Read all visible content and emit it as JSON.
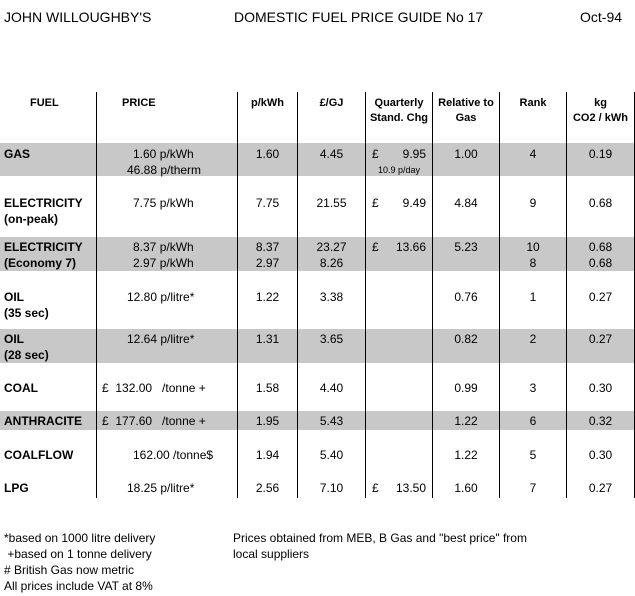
{
  "header": {
    "author": "JOHN WILLOUGHBY'S",
    "title": "DOMESTIC FUEL PRICE GUIDE No 17",
    "date": "Oct-94"
  },
  "columns": {
    "fuel": "FUEL",
    "price": "PRICE",
    "pkwh": "p/kWh",
    "gj": "£/GJ",
    "quarterly_1": "Quarterly",
    "quarterly_2": "Stand. Chg",
    "relative_1": "Relative to",
    "relative_2": "Gas",
    "rank": "Rank",
    "co2_1": "kg",
    "co2_2": "CO2 / kWh"
  },
  "rows": [
    {
      "fuel1": "GAS",
      "fuel2": "",
      "price1": "1.60  p/kWh",
      "price2": "46.88  p/therm",
      "pkwh1": "1.60",
      "pkwh2": "",
      "gj1": "4.45",
      "gj2": "",
      "q_sym": "£",
      "q_val": "9.95",
      "q_note": "10.9 p/day",
      "rel": "1.00",
      "rank1": "4",
      "rank2": "",
      "co21": "0.19",
      "co22": ""
    },
    {
      "fuel1": "ELECTRICITY",
      "fuel2": "(on-peak)",
      "price1": "7.75  p/kWh",
      "price2": "",
      "pkwh1": "7.75",
      "pkwh2": "",
      "gj1": "21.55",
      "gj2": "",
      "q_sym": "£",
      "q_val": "9.49",
      "q_note": "",
      "rel": "4.84",
      "rank1": "9",
      "rank2": "",
      "co21": "0.68",
      "co22": ""
    },
    {
      "fuel1": "ELECTRICITY",
      "fuel2": "(Economy 7)",
      "price1": "8.37  p/kWh",
      "price2": "2.97  p/kWh",
      "pkwh1": "8.37",
      "pkwh2": "2.97",
      "gj1": "23.27",
      "gj2": "8.26",
      "q_sym": "£",
      "q_val": "13.66",
      "q_note": "",
      "rel": "5.23",
      "rank1": "10",
      "rank2": "8",
      "co21": "0.68",
      "co22": "0.68"
    },
    {
      "fuel1": "OIL",
      "fuel2": "(35 sec)",
      "price1": "12.80  p/litre*",
      "price2": "",
      "pkwh1": "1.22",
      "pkwh2": "",
      "gj1": "3.38",
      "gj2": "",
      "q_sym": "",
      "q_val": "",
      "q_note": "",
      "rel": "0.76",
      "rank1": "1",
      "rank2": "",
      "co21": "0.27",
      "co22": ""
    },
    {
      "fuel1": "OIL",
      "fuel2": "(28 sec)",
      "price1": "12.64  p/litre*",
      "price2": "",
      "pkwh1": "1.31",
      "pkwh2": "",
      "gj1": "3.65",
      "gj2": "",
      "q_sym": "",
      "q_val": "",
      "q_note": "",
      "rel": "0.82",
      "rank1": "2",
      "rank2": "",
      "co21": "0.27",
      "co22": ""
    },
    {
      "fuel1": "COAL",
      "fuel2": "",
      "price1": "£  132.00   /tonne +",
      "price2": "",
      "pkwh1": "1.58",
      "pkwh2": "",
      "gj1": "4.40",
      "gj2": "",
      "q_sym": "",
      "q_val": "",
      "q_note": "",
      "rel": "0.99",
      "rank1": "3",
      "rank2": "",
      "co21": "0.30",
      "co22": ""
    },
    {
      "fuel1": "ANTHRACITE",
      "fuel2": "",
      "price1": "£  177.60   /tonne +",
      "price2": "",
      "pkwh1": "1.95",
      "pkwh2": "",
      "gj1": "5.43",
      "gj2": "",
      "q_sym": "",
      "q_val": "",
      "q_note": "",
      "rel": "1.22",
      "rank1": "6",
      "rank2": "",
      "co21": "0.32",
      "co22": ""
    },
    {
      "fuel1": "COALFLOW",
      "fuel2": "",
      "price1": "162.00  /tonne$",
      "price2": "",
      "pkwh1": "1.94",
      "pkwh2": "",
      "gj1": "5.40",
      "gj2": "",
      "q_sym": "",
      "q_val": "",
      "q_note": "",
      "rel": "1.22",
      "rank1": "5",
      "rank2": "",
      "co21": "0.30",
      "co22": ""
    },
    {
      "fuel1": "LPG",
      "fuel2": "",
      "price1": "18.25  p/litre*",
      "price2": "",
      "pkwh1": "2.56",
      "pkwh2": "",
      "gj1": "7.10",
      "gj2": "",
      "q_sym": "£",
      "q_val": "13.50",
      "q_note": "",
      "rel": "1.60",
      "rank1": "7",
      "rank2": "",
      "co21": "0.27",
      "co22": ""
    }
  ],
  "footnotes": {
    "n1": "*based on 1000 litre delivery",
    "n2": " +based on 1 tonne delivery",
    "n3": "# British Gas now metric",
    "n4": "All prices include VAT at 8%",
    "src1": "Prices obtained from MEB, B Gas and \"best price\" from",
    "src2": "local suppliers"
  }
}
